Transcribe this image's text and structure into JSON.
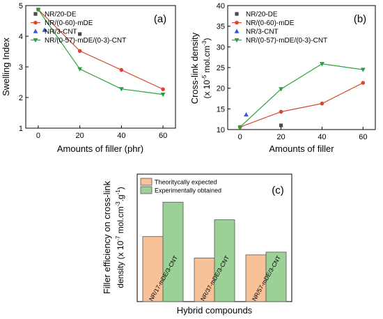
{
  "chart_data": [
    {
      "panel": "(a)",
      "type": "line",
      "ylabel": "Swelling Index",
      "xlabel": "Amounts of filler (phr)",
      "xlim": [
        -6,
        66
      ],
      "ylim": [
        1,
        5
      ],
      "xticks": [
        0,
        20,
        40,
        60
      ],
      "yticks": [
        1,
        2,
        3,
        4,
        5
      ],
      "legend_position": "top-left",
      "series": [
        {
          "name": "NR/20-DE",
          "marker": "square",
          "color": "#4a4a4a",
          "line": false,
          "x": [
            20
          ],
          "y": [
            4.07
          ]
        },
        {
          "name": "NR/(0-60)-mDE",
          "marker": "circle",
          "color": "#d6482f",
          "line": true,
          "x": [
            0,
            20,
            40,
            60
          ],
          "y": [
            4.87,
            3.52,
            2.9,
            2.27
          ]
        },
        {
          "name": "NR/3-CNT",
          "marker": "triangle-up",
          "color": "#2f58d6",
          "line": false,
          "x": [
            3
          ],
          "y": [
            4.2
          ]
        },
        {
          "name": "NR/(0-57)-mDE/(0-3)-CNT",
          "marker": "triangle-down",
          "color": "#27a23a",
          "line": true,
          "x": [
            0,
            20,
            40,
            60
          ],
          "y": [
            4.87,
            2.93,
            2.28,
            2.1
          ]
        }
      ]
    },
    {
      "panel": "(b)",
      "type": "line",
      "ylabel_line1": "Cross-link density",
      "ylabel_line2": "(x 10",
      "ylabel_exp": "-5",
      "ylabel_unit": " mol.cm",
      "ylabel_unit_exp": "-3",
      "ylabel_close": ")",
      "xlabel": "Amounts of filler",
      "xlim": [
        -6,
        66
      ],
      "ylim": [
        10,
        40
      ],
      "xticks": [
        0,
        20,
        40,
        60
      ],
      "yticks": [
        10,
        15,
        20,
        25,
        30,
        35,
        40
      ],
      "legend_position": "top-left",
      "series": [
        {
          "name": "NR/20-DE",
          "marker": "square",
          "color": "#4a4a4a",
          "line": false,
          "x": [
            20
          ],
          "y": [
            11.0
          ]
        },
        {
          "name": "NR/(0-60)-mDE",
          "marker": "circle",
          "color": "#d6482f",
          "line": true,
          "x": [
            0,
            20,
            40,
            60
          ],
          "y": [
            10.6,
            14.3,
            16.3,
            21.3
          ]
        },
        {
          "name": "NR/3-CNT",
          "marker": "triangle-up",
          "color": "#2f58d6",
          "line": false,
          "x": [
            3
          ],
          "y": [
            13.6
          ]
        },
        {
          "name": "NR/(0-57)-mDE/(0-3)-CNT",
          "marker": "triangle-down",
          "color": "#27a23a",
          "line": true,
          "x": [
            0,
            20,
            40,
            60
          ],
          "y": [
            10.6,
            19.8,
            25.9,
            24.5
          ]
        }
      ]
    },
    {
      "panel": "(c)",
      "type": "bar",
      "ylabel_line1": "Filler efficiency on cross-link",
      "ylabel_line2": "density (x 10",
      "ylabel_exp": "-7",
      "ylabel_unit": " mol.cm",
      "ylabel_unit_exp": "-3",
      "ylabel_unit2": ".g",
      "ylabel_unit2_exp": "-1",
      "ylabel_close": ")",
      "xlabel": "Hybrid compounds",
      "categories": [
        "NR/17-mDE/3-CNT",
        "NR/37-mDE/3-CNT",
        "NR/57-mDE/3-CNT"
      ],
      "ylim": [
        0,
        60
      ],
      "legend_position": "top-left",
      "series": [
        {
          "name": "Theoritycally expected",
          "color": "#f8c298",
          "values": [
            30.6,
            20.5,
            22.0
          ]
        },
        {
          "name": "Experimentally obtained",
          "color": "#9bd196",
          "values": [
            46.8,
            38.5,
            23.3
          ]
        }
      ]
    }
  ]
}
